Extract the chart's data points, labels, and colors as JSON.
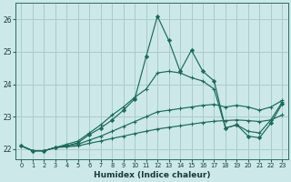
{
  "xlabel": "Humidex (Indice chaleur)",
  "background_color": "#cce8e8",
  "grid_color": "#aacccc",
  "line_color": "#1a6b5a",
  "xlim": [
    -0.5,
    23.5
  ],
  "ylim": [
    21.7,
    26.5
  ],
  "yticks": [
    22,
    23,
    24,
    25,
    26
  ],
  "xticks": [
    0,
    1,
    2,
    3,
    4,
    5,
    6,
    7,
    8,
    9,
    10,
    11,
    12,
    13,
    14,
    15,
    16,
    17,
    18,
    19,
    20,
    21,
    22,
    23
  ],
  "line1_y": [
    22.1,
    21.95,
    21.95,
    22.05,
    22.1,
    22.2,
    22.45,
    22.65,
    22.9,
    23.2,
    23.55,
    24.85,
    26.1,
    25.35,
    24.4,
    25.05,
    24.4,
    24.1,
    22.65,
    22.75,
    22.4,
    22.35,
    22.8,
    23.4
  ],
  "line2_y": [
    22.1,
    21.95,
    21.95,
    22.05,
    22.15,
    22.25,
    22.5,
    22.75,
    23.05,
    23.3,
    23.6,
    23.85,
    24.35,
    24.4,
    24.35,
    24.2,
    24.1,
    23.85,
    22.65,
    22.75,
    22.55,
    22.5,
    22.9,
    23.45
  ],
  "line3_y": [
    22.1,
    21.95,
    21.95,
    22.05,
    22.1,
    22.15,
    22.28,
    22.4,
    22.55,
    22.7,
    22.85,
    23.0,
    23.15,
    23.2,
    23.25,
    23.3,
    23.35,
    23.38,
    23.3,
    23.35,
    23.3,
    23.2,
    23.3,
    23.5
  ],
  "line4_y": [
    22.1,
    21.95,
    21.95,
    22.05,
    22.07,
    22.1,
    22.18,
    22.25,
    22.33,
    22.4,
    22.48,
    22.55,
    22.62,
    22.67,
    22.72,
    22.77,
    22.82,
    22.86,
    22.88,
    22.9,
    22.88,
    22.85,
    22.9,
    23.05
  ]
}
